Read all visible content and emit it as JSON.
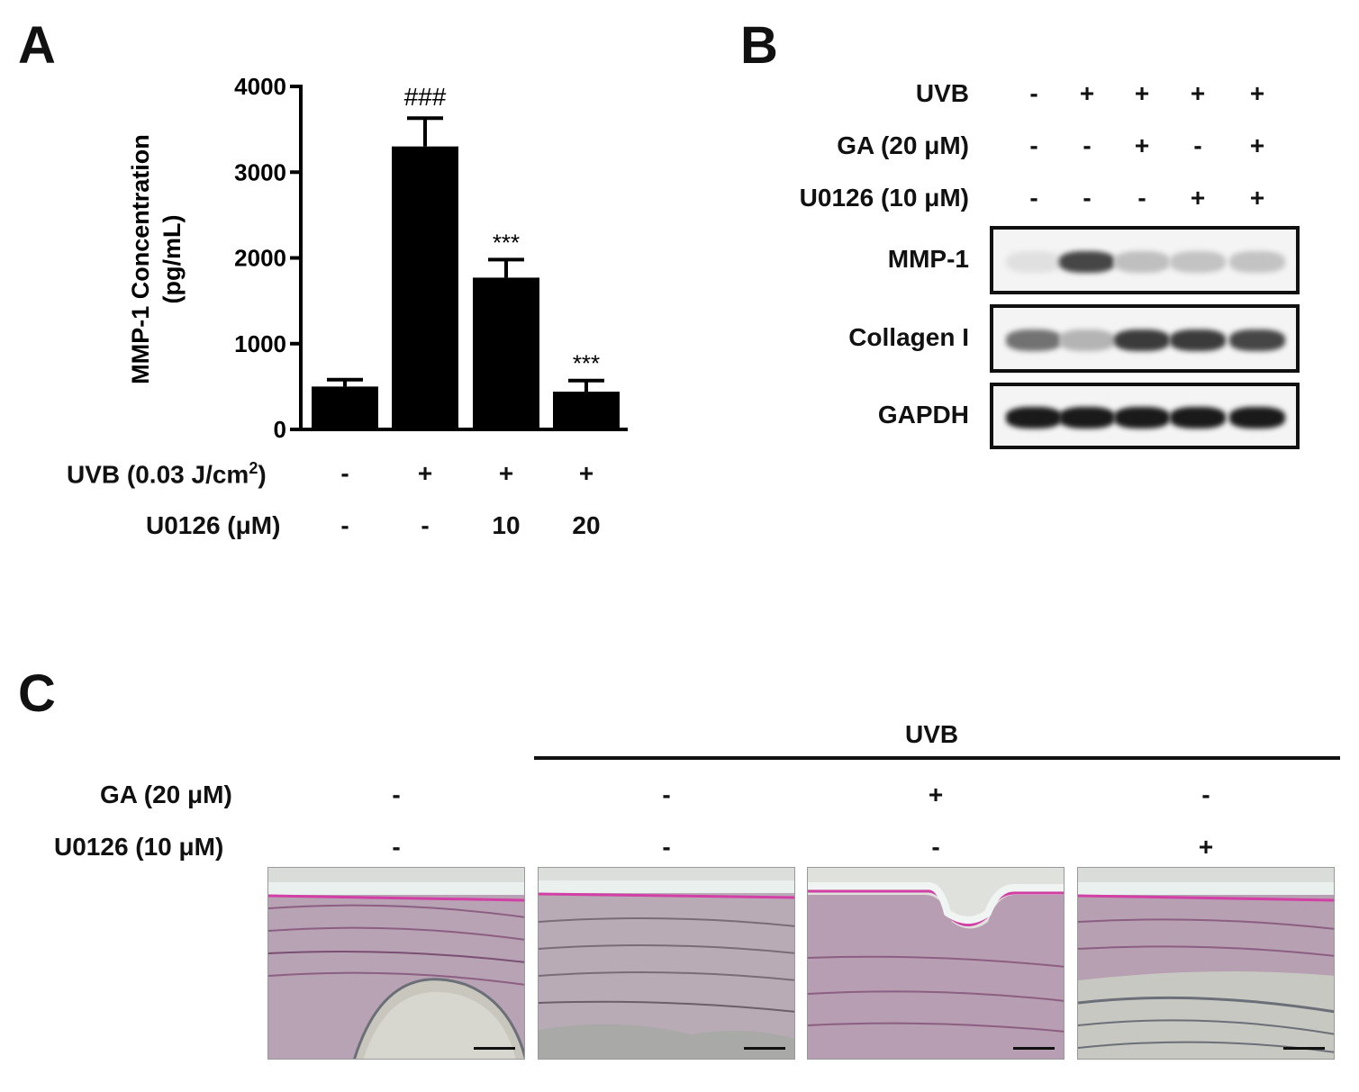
{
  "panels": {
    "a": "A",
    "b": "B",
    "c": "C"
  },
  "chart_data": {
    "type": "bar",
    "ylabel_line1": "MMP-1 Concentration",
    "ylabel_line2": "(pg/mL)",
    "ylim": [
      0,
      4000
    ],
    "yticks": [
      "0",
      "1000",
      "2000",
      "3000",
      "4000"
    ],
    "values": [
      500,
      3300,
      1770,
      440
    ],
    "errors": [
      80,
      330,
      210,
      130
    ],
    "annotations": [
      "",
      "###",
      "***",
      "***"
    ],
    "color": "#000000",
    "conditions": [
      {
        "label": "UVB (0.03 J/cm",
        "sup": "2",
        "label_end": ")",
        "values": [
          "-",
          "+",
          "+",
          "+"
        ]
      },
      {
        "label": "U0126 (μM)",
        "values": [
          "-",
          "-",
          "10",
          "20"
        ]
      }
    ]
  },
  "western": {
    "conditions": [
      {
        "label": "UVB",
        "values": [
          "-",
          "+",
          "+",
          "+",
          "+"
        ]
      },
      {
        "label": "GA (20 μM)",
        "values": [
          "-",
          "-",
          "+",
          "-",
          "+"
        ]
      },
      {
        "label": "U0126 (10 μM)",
        "values": [
          "-",
          "-",
          "-",
          "+",
          "+"
        ]
      }
    ],
    "blots": [
      {
        "label": "MMP-1",
        "intensity": [
          0.05,
          0.75,
          0.2,
          0.18,
          0.18
        ]
      },
      {
        "label": "Collagen I",
        "intensity": [
          0.55,
          0.25,
          0.8,
          0.8,
          0.75
        ]
      },
      {
        "label": "GAPDH",
        "intensity": [
          0.95,
          0.95,
          0.95,
          0.95,
          0.95
        ]
      }
    ]
  },
  "histology": {
    "header": "UVB",
    "conditions": [
      {
        "label": "GA (20 μM)",
        "values": [
          "-",
          "-",
          "+",
          "-"
        ]
      },
      {
        "label": "U0126 (10 μM)",
        "values": [
          "-",
          "-",
          "-",
          "+"
        ]
      }
    ]
  }
}
